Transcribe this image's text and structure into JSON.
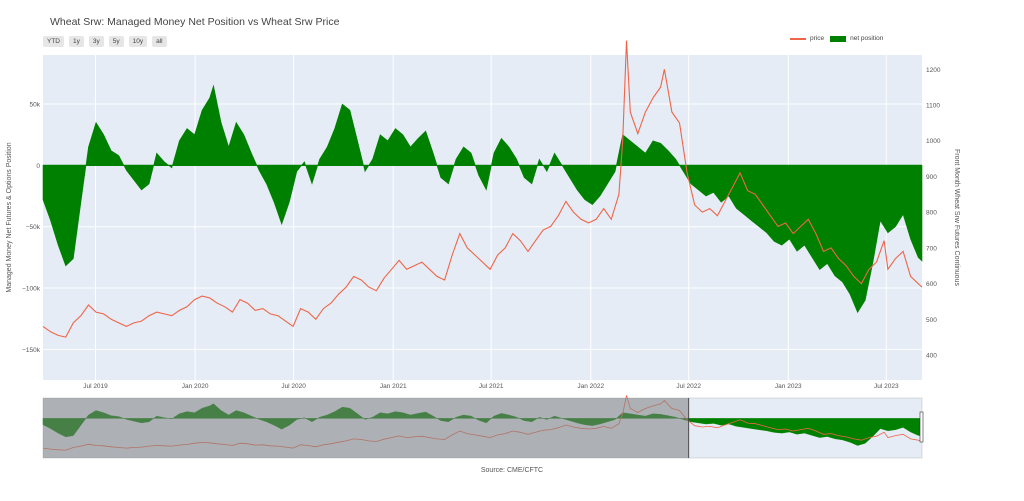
{
  "title": "Wheat Srw: Managed Money Net Position vs Wheat Srw Price",
  "range_buttons": [
    "YTD",
    "1y",
    "3y",
    "5y",
    "10y",
    "all"
  ],
  "legend": {
    "price": "price",
    "net_position": "net position"
  },
  "source": "Source: CME/CFTC",
  "colors": {
    "price": "#ef6548",
    "net_position": "#008000",
    "plot_bg": "#e5ecf6",
    "range_shade": "#808080"
  },
  "chart_data": {
    "type": "area",
    "x_ticks": [
      "Jul 2019",
      "Jan 2020",
      "Jul 2020",
      "Jan 2021",
      "Jul 2021",
      "Jan 2022",
      "Jul 2022",
      "Jan 2023",
      "Jul 2023"
    ],
    "xlim": [
      "2019-03-26",
      "2023-09-05"
    ],
    "ylabel_left": "Managed Money Net Futures & Options Position",
    "ylabel_right": "Front Month Wheat Srw Futures Continuous",
    "y_left_ticks": [
      "50k",
      "0",
      "−50k",
      "−100k",
      "−150k"
    ],
    "y_left_lim": [
      -175000,
      90000
    ],
    "y_right_ticks": [
      "400",
      "500",
      "600",
      "700",
      "800",
      "900",
      "1000",
      "1100",
      "1200"
    ],
    "y_right_lim": [
      330,
      1240
    ],
    "grid": true,
    "legend_position": "top-right",
    "series": [
      {
        "name": "net position",
        "axis": "left",
        "points": [
          [
            "2019-03-26",
            -28000
          ],
          [
            "2019-04-09",
            -45000
          ],
          [
            "2019-04-23",
            -65000
          ],
          [
            "2019-05-07",
            -82000
          ],
          [
            "2019-05-21",
            -76000
          ],
          [
            "2019-06-04",
            -30000
          ],
          [
            "2019-06-18",
            15000
          ],
          [
            "2019-07-02",
            35000
          ],
          [
            "2019-07-16",
            25000
          ],
          [
            "2019-07-30",
            12000
          ],
          [
            "2019-08-13",
            8000
          ],
          [
            "2019-08-27",
            -4000
          ],
          [
            "2019-09-10",
            -12000
          ],
          [
            "2019-09-24",
            -20000
          ],
          [
            "2019-10-08",
            -15000
          ],
          [
            "2019-10-22",
            10000
          ],
          [
            "2019-11-05",
            3000
          ],
          [
            "2019-11-19",
            -2000
          ],
          [
            "2019-12-03",
            20000
          ],
          [
            "2019-12-17",
            30000
          ],
          [
            "2019-12-31",
            25000
          ],
          [
            "2020-01-14",
            45000
          ],
          [
            "2020-01-28",
            55000
          ],
          [
            "2020-02-04",
            65000
          ],
          [
            "2020-02-18",
            35000
          ],
          [
            "2020-03-03",
            15000
          ],
          [
            "2020-03-17",
            35000
          ],
          [
            "2020-03-31",
            25000
          ],
          [
            "2020-04-14",
            10000
          ],
          [
            "2020-04-28",
            -4000
          ],
          [
            "2020-05-12",
            -15000
          ],
          [
            "2020-05-26",
            -30000
          ],
          [
            "2020-06-09",
            -48000
          ],
          [
            "2020-06-23",
            -30000
          ],
          [
            "2020-07-07",
            -5000
          ],
          [
            "2020-07-21",
            3000
          ],
          [
            "2020-08-04",
            -15000
          ],
          [
            "2020-08-18",
            5000
          ],
          [
            "2020-09-01",
            15000
          ],
          [
            "2020-09-15",
            30000
          ],
          [
            "2020-09-29",
            50000
          ],
          [
            "2020-10-13",
            45000
          ],
          [
            "2020-10-27",
            20000
          ],
          [
            "2020-11-10",
            -5000
          ],
          [
            "2020-11-24",
            5000
          ],
          [
            "2020-12-08",
            25000
          ],
          [
            "2020-12-22",
            20000
          ],
          [
            "2021-01-05",
            30000
          ],
          [
            "2021-01-19",
            25000
          ],
          [
            "2021-02-02",
            15000
          ],
          [
            "2021-02-16",
            22000
          ],
          [
            "2021-03-02",
            28000
          ],
          [
            "2021-03-16",
            10000
          ],
          [
            "2021-03-30",
            -10000
          ],
          [
            "2021-04-13",
            -15000
          ],
          [
            "2021-04-27",
            5000
          ],
          [
            "2021-05-11",
            15000
          ],
          [
            "2021-05-25",
            10000
          ],
          [
            "2021-06-08",
            -8000
          ],
          [
            "2021-06-22",
            -20000
          ],
          [
            "2021-07-06",
            10000
          ],
          [
            "2021-07-20",
            22000
          ],
          [
            "2021-08-03",
            15000
          ],
          [
            "2021-08-17",
            5000
          ],
          [
            "2021-08-31",
            -10000
          ],
          [
            "2021-09-14",
            -15000
          ],
          [
            "2021-09-28",
            5000
          ],
          [
            "2021-10-12",
            -5000
          ],
          [
            "2021-10-26",
            10000
          ],
          [
            "2021-11-09",
            0
          ],
          [
            "2021-11-23",
            -10000
          ],
          [
            "2021-12-07",
            -20000
          ],
          [
            "2021-12-21",
            -28000
          ],
          [
            "2022-01-04",
            -32000
          ],
          [
            "2022-01-18",
            -25000
          ],
          [
            "2022-02-01",
            -15000
          ],
          [
            "2022-02-15",
            -5000
          ],
          [
            "2022-03-01",
            25000
          ],
          [
            "2022-03-15",
            20000
          ],
          [
            "2022-03-29",
            15000
          ],
          [
            "2022-04-12",
            10000
          ],
          [
            "2022-04-26",
            20000
          ],
          [
            "2022-05-10",
            18000
          ],
          [
            "2022-05-24",
            12000
          ],
          [
            "2022-06-07",
            5000
          ],
          [
            "2022-06-21",
            -5000
          ],
          [
            "2022-07-05",
            -15000
          ],
          [
            "2022-07-19",
            -20000
          ],
          [
            "2022-08-02",
            -25000
          ],
          [
            "2022-08-16",
            -22000
          ],
          [
            "2022-08-30",
            -30000
          ],
          [
            "2022-09-13",
            -25000
          ],
          [
            "2022-09-27",
            -35000
          ],
          [
            "2022-10-11",
            -40000
          ],
          [
            "2022-10-25",
            -45000
          ],
          [
            "2022-11-08",
            -50000
          ],
          [
            "2022-11-22",
            -55000
          ],
          [
            "2022-12-06",
            -62000
          ],
          [
            "2022-12-20",
            -65000
          ],
          [
            "2023-01-03",
            -60000
          ],
          [
            "2023-01-17",
            -70000
          ],
          [
            "2023-01-31",
            -65000
          ],
          [
            "2023-02-14",
            -75000
          ],
          [
            "2023-02-28",
            -85000
          ],
          [
            "2023-03-14",
            -80000
          ],
          [
            "2023-03-28",
            -90000
          ],
          [
            "2023-04-11",
            -95000
          ],
          [
            "2023-04-25",
            -105000
          ],
          [
            "2023-05-09",
            -120000
          ],
          [
            "2023-05-23",
            -110000
          ],
          [
            "2023-06-06",
            -80000
          ],
          [
            "2023-06-20",
            -45000
          ],
          [
            "2023-07-04",
            -55000
          ],
          [
            "2023-07-18",
            -50000
          ],
          [
            "2023-08-01",
            -40000
          ],
          [
            "2023-08-15",
            -60000
          ],
          [
            "2023-08-29",
            -75000
          ],
          [
            "2023-09-05",
            -78000
          ]
        ]
      },
      {
        "name": "price",
        "axis": "right",
        "points": [
          [
            "2019-03-26",
            480
          ],
          [
            "2019-04-09",
            465
          ],
          [
            "2019-04-23",
            455
          ],
          [
            "2019-05-07",
            450
          ],
          [
            "2019-05-21",
            490
          ],
          [
            "2019-06-04",
            510
          ],
          [
            "2019-06-18",
            540
          ],
          [
            "2019-07-02",
            520
          ],
          [
            "2019-07-16",
            515
          ],
          [
            "2019-07-30",
            500
          ],
          [
            "2019-08-13",
            490
          ],
          [
            "2019-08-27",
            480
          ],
          [
            "2019-09-10",
            490
          ],
          [
            "2019-09-24",
            495
          ],
          [
            "2019-10-08",
            510
          ],
          [
            "2019-10-22",
            520
          ],
          [
            "2019-11-05",
            515
          ],
          [
            "2019-11-19",
            510
          ],
          [
            "2019-12-03",
            525
          ],
          [
            "2019-12-17",
            535
          ],
          [
            "2019-12-31",
            555
          ],
          [
            "2020-01-14",
            565
          ],
          [
            "2020-01-28",
            560
          ],
          [
            "2020-02-11",
            545
          ],
          [
            "2020-02-25",
            535
          ],
          [
            "2020-03-10",
            520
          ],
          [
            "2020-03-24",
            555
          ],
          [
            "2020-04-07",
            545
          ],
          [
            "2020-04-21",
            525
          ],
          [
            "2020-05-05",
            530
          ],
          [
            "2020-05-19",
            515
          ],
          [
            "2020-06-02",
            510
          ],
          [
            "2020-06-16",
            495
          ],
          [
            "2020-06-30",
            480
          ],
          [
            "2020-07-14",
            530
          ],
          [
            "2020-07-28",
            520
          ],
          [
            "2020-08-11",
            500
          ],
          [
            "2020-08-25",
            530
          ],
          [
            "2020-09-08",
            545
          ],
          [
            "2020-09-22",
            570
          ],
          [
            "2020-10-06",
            590
          ],
          [
            "2020-10-20",
            620
          ],
          [
            "2020-11-03",
            610
          ],
          [
            "2020-11-17",
            590
          ],
          [
            "2020-12-01",
            580
          ],
          [
            "2020-12-15",
            615
          ],
          [
            "2020-12-29",
            640
          ],
          [
            "2021-01-12",
            665
          ],
          [
            "2021-01-26",
            640
          ],
          [
            "2021-02-09",
            650
          ],
          [
            "2021-02-23",
            660
          ],
          [
            "2021-03-09",
            640
          ],
          [
            "2021-03-23",
            620
          ],
          [
            "2021-04-06",
            610
          ],
          [
            "2021-04-20",
            680
          ],
          [
            "2021-05-04",
            740
          ],
          [
            "2021-05-18",
            700
          ],
          [
            "2021-06-01",
            680
          ],
          [
            "2021-06-15",
            660
          ],
          [
            "2021-06-29",
            640
          ],
          [
            "2021-07-13",
            680
          ],
          [
            "2021-07-27",
            700
          ],
          [
            "2021-08-10",
            740
          ],
          [
            "2021-08-24",
            720
          ],
          [
            "2021-09-07",
            690
          ],
          [
            "2021-09-21",
            720
          ],
          [
            "2021-10-05",
            750
          ],
          [
            "2021-10-19",
            760
          ],
          [
            "2021-11-02",
            790
          ],
          [
            "2021-11-16",
            830
          ],
          [
            "2021-11-30",
            800
          ],
          [
            "2021-12-14",
            780
          ],
          [
            "2021-12-28",
            770
          ],
          [
            "2022-01-11",
            780
          ],
          [
            "2022-01-25",
            810
          ],
          [
            "2022-02-08",
            780
          ],
          [
            "2022-02-22",
            850
          ],
          [
            "2022-03-01",
            1000
          ],
          [
            "2022-03-08",
            1280
          ],
          [
            "2022-03-15",
            1080
          ],
          [
            "2022-03-29",
            1020
          ],
          [
            "2022-04-12",
            1080
          ],
          [
            "2022-04-26",
            1120
          ],
          [
            "2022-05-10",
            1150
          ],
          [
            "2022-05-17",
            1200
          ],
          [
            "2022-05-31",
            1080
          ],
          [
            "2022-06-14",
            1050
          ],
          [
            "2022-06-28",
            910
          ],
          [
            "2022-07-12",
            820
          ],
          [
            "2022-07-26",
            800
          ],
          [
            "2022-08-09",
            810
          ],
          [
            "2022-08-23",
            790
          ],
          [
            "2022-09-06",
            830
          ],
          [
            "2022-09-20",
            870
          ],
          [
            "2022-10-04",
            910
          ],
          [
            "2022-10-18",
            860
          ],
          [
            "2022-11-01",
            850
          ],
          [
            "2022-11-15",
            820
          ],
          [
            "2022-11-29",
            790
          ],
          [
            "2022-12-13",
            760
          ],
          [
            "2022-12-27",
            770
          ],
          [
            "2023-01-10",
            740
          ],
          [
            "2023-01-24",
            760
          ],
          [
            "2023-02-07",
            780
          ],
          [
            "2023-02-21",
            740
          ],
          [
            "2023-03-07",
            690
          ],
          [
            "2023-03-21",
            700
          ],
          [
            "2023-04-04",
            670
          ],
          [
            "2023-04-18",
            650
          ],
          [
            "2023-05-02",
            620
          ],
          [
            "2023-05-16",
            600
          ],
          [
            "2023-05-30",
            640
          ],
          [
            "2023-06-13",
            660
          ],
          [
            "2023-06-27",
            720
          ],
          [
            "2023-07-04",
            640
          ],
          [
            "2023-07-18",
            670
          ],
          [
            "2023-08-01",
            690
          ],
          [
            "2023-08-15",
            620
          ],
          [
            "2023-08-29",
            600
          ],
          [
            "2023-09-05",
            590
          ]
        ]
      }
    ]
  },
  "range_selector": {
    "visible_from": "2022-07-01",
    "visible_to": "2023-09-05"
  }
}
